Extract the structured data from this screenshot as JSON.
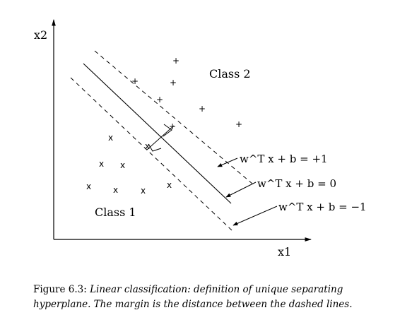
{
  "axes": {
    "x_label": "x1",
    "y_label": "x2"
  },
  "classes": {
    "class1_label": "Class 1",
    "class2_label": "Class 2",
    "class1_marker": "x",
    "class2_marker": "+"
  },
  "hyperplanes": {
    "upper": "w^T x + b = +1",
    "middle": "w^T x + b = 0",
    "lower": "w^T x + b = −1"
  },
  "caption": {
    "label": "Figure 6.3:",
    "text": "Linear classification: definition of unique separating hyperplane. The margin is the distance between the dashed lines."
  }
}
